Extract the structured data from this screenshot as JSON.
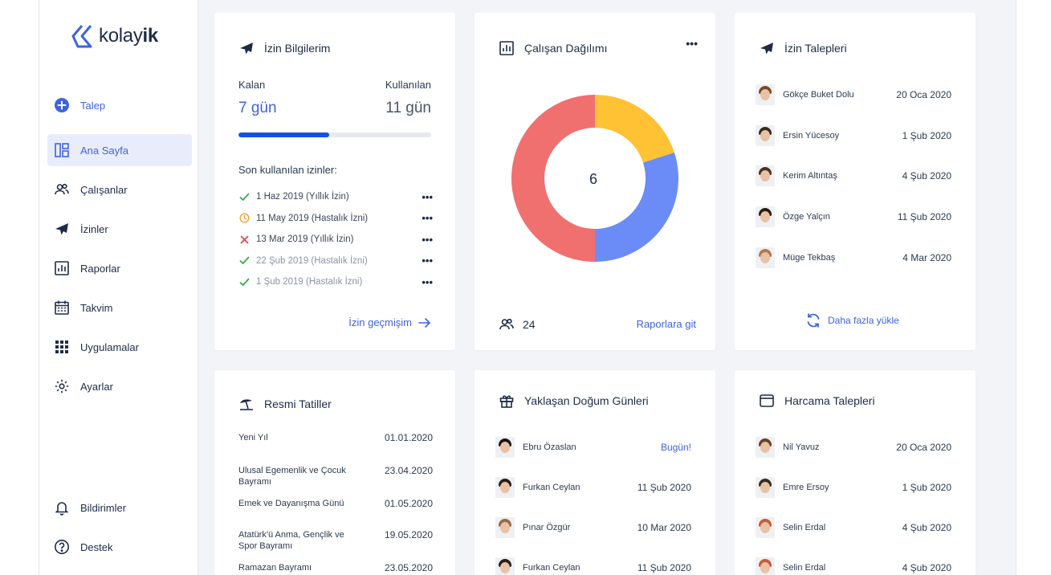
{
  "brand": {
    "logo_text_light": "kolay",
    "logo_text_bold": "ik"
  },
  "sidebar": {
    "primary_action": {
      "label": "Talep",
      "icon": "plus-circle-icon"
    },
    "items": [
      {
        "label": "Ana Sayfa",
        "icon": "dashboard-icon",
        "active": true
      },
      {
        "label": "Çalışanlar",
        "icon": "users-icon"
      },
      {
        "label": "İzinler",
        "icon": "airplane-icon"
      },
      {
        "label": "Raporlar",
        "icon": "chart-icon"
      },
      {
        "label": "Takvim",
        "icon": "calendar-icon"
      },
      {
        "label": "Uygulamalar",
        "icon": "grid-icon"
      },
      {
        "label": "Ayarlar",
        "icon": "gear-icon"
      }
    ],
    "bottom": [
      {
        "label": "Bildirimler",
        "icon": "bell-icon"
      },
      {
        "label": "Destek",
        "icon": "help-icon"
      }
    ]
  },
  "leave_info": {
    "title": "İzin Bilgilerim",
    "remaining_label": "Kalan",
    "remaining_value": "7 gün",
    "used_label": "Kullanılan",
    "used_value": "11 gün",
    "progress_fraction": 0.47,
    "recent_title": "Son kullanılan izinler:",
    "recent": [
      {
        "text": "1 Haz 2019 (Yıllık İzin)",
        "status": "approved"
      },
      {
        "text": "11 May 2019 (Hastalık İzni)",
        "status": "pending"
      },
      {
        "text": "13 Mar 2019 (Yıllık İzin)",
        "status": "rejected"
      },
      {
        "text": "22 Şub 2019 (Hastalık İzni)",
        "status": "approved"
      },
      {
        "text": "1 Şub 2019 (Hastalık İzni)",
        "status": "approved"
      }
    ],
    "more_glyph": "•••",
    "history_link": "İzin geçmişim"
  },
  "distribution": {
    "title": "Çalışan Dağılımı",
    "menu_glyph": "•••",
    "center_value": "6",
    "employee_count": "24",
    "reports_link": "Raporlara git"
  },
  "chart_data": {
    "type": "pie",
    "values": [
      20,
      30,
      50
    ],
    "colors": [
      "#ffc234",
      "#6b8cf7",
      "#f07070"
    ]
  },
  "leave_requests": {
    "title": "İzin Talepleri",
    "rows": [
      {
        "name": "Gökçe Buket Dolu",
        "date": "20 Oca 2020",
        "hair": "#7a4a2a"
      },
      {
        "name": "Ersin Yücesoy",
        "date": "1 Şub 2020",
        "hair": "#3a2a22"
      },
      {
        "name": "Kerim Altıntaş",
        "date": "4 Şub 2020",
        "hair": "#4a3020"
      },
      {
        "name": "Özge Yalçın",
        "date": "11 Şub 2020",
        "hair": "#2a1a14"
      },
      {
        "name": "Müge Tekbaş",
        "date": "4 Mar 2020",
        "hair": "#b07a50"
      }
    ],
    "load_more": "Daha fazla yükle"
  },
  "holidays": {
    "title": "Resmi Tatiller",
    "rows": [
      {
        "name": "Yeni Yıl",
        "date": "01.01.2020"
      },
      {
        "name": "Ulusal Egemenlik ve Çocuk Bayramı",
        "date": "23.04.2020"
      },
      {
        "name": "Emek ve Dayanışma Günü",
        "date": "01.05.2020"
      },
      {
        "name": "Atatürk'ü Anma, Gençlik ve Spor Bayramı",
        "date": "19.05.2020"
      },
      {
        "name": "Ramazan Bayramı",
        "date": "23.05.2020"
      }
    ]
  },
  "birthdays": {
    "title": "Yaklaşan Doğum Günleri",
    "rows": [
      {
        "name": "Ebru Özaslan",
        "date": "Bugün!",
        "highlight": true,
        "hair": "#1e1410"
      },
      {
        "name": "Furkan Ceylan",
        "date": "11 Şub 2020",
        "hair": "#2a1e18"
      },
      {
        "name": "Pınar Özgür",
        "date": "10 Mar 2020",
        "hair": "#9a6a44"
      },
      {
        "name": "Furkan Ceylan",
        "date": "11 Şub 2020",
        "hair": "#2a1e18"
      }
    ]
  },
  "expenses": {
    "title": "Harcama Talepleri",
    "rows": [
      {
        "name": "Nil Yavuz",
        "date": "20 Oca 2020",
        "hair": "#6a4028"
      },
      {
        "name": "Emre Ersoy",
        "date": "1 Şub 2020",
        "hair": "#3a2a22"
      },
      {
        "name": "Selin Erdal",
        "date": "4 Şub 2020",
        "hair": "#c85a3a"
      },
      {
        "name": "Selin Erdal",
        "date": "4 Şub 2020",
        "hair": "#c85a3a"
      }
    ]
  }
}
